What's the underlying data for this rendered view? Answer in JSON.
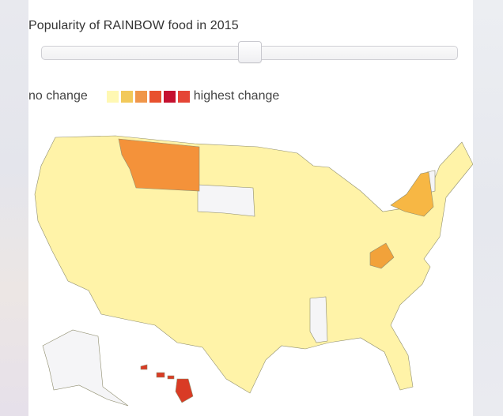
{
  "title": "Popularity of RAINBOW food in 2015",
  "slider": {
    "position": 0.5
  },
  "legend": {
    "low_label": "no change",
    "high_label": "highest change",
    "colors": [
      "#fff8b3",
      "#f2c95a",
      "#f0964a",
      "#e8512e",
      "#c5112f",
      "#e54536"
    ]
  },
  "map": {
    "default_color": "#fff3a8",
    "no_data_color": "#f5f5f7",
    "highlight": {
      "Montana": "#f4923a",
      "New York": "#f7b744",
      "West Virginia": "#f2a23a",
      "Hawaii": "#d93b25"
    },
    "no_data": [
      "South Dakota",
      "Mississippi",
      "Alaska",
      "Vermont"
    ]
  }
}
